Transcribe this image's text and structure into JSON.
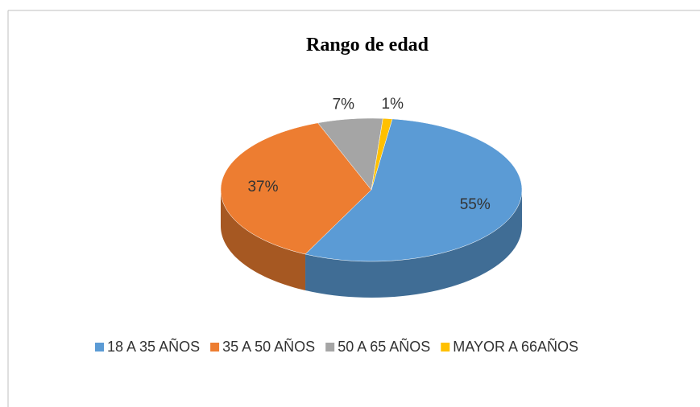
{
  "chart_data": {
    "type": "pie",
    "title": "Rango de edad",
    "categories": [
      "18 A 35 AÑOS",
      "35 A 50 AÑOS",
      "50 A 65 AÑOS",
      "MAYOR A 66AÑOS"
    ],
    "values": [
      55,
      37,
      7,
      1
    ],
    "value_labels": [
      "55%",
      "37%",
      "7%",
      "1%"
    ],
    "colors": [
      "#5b9bd5",
      "#ed7d31",
      "#a5a5a5",
      "#ffc000"
    ],
    "legend": "bottom"
  }
}
